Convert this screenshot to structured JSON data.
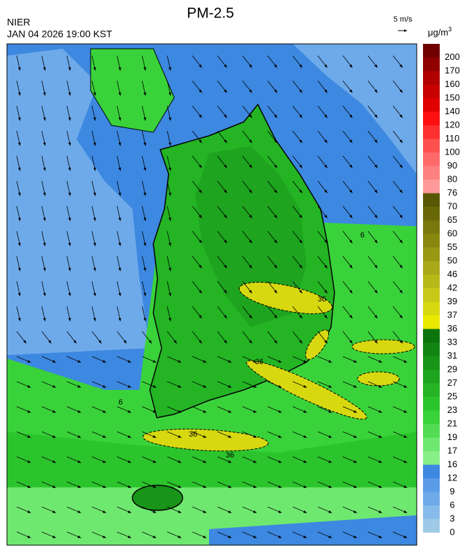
{
  "header": {
    "title": "PM-2.5",
    "agency": "NIER",
    "datetime": "JAN 04 2026 19:00 KST",
    "wind_scale": "5 m/s",
    "unit": "μg/m",
    "unit_sup": "3"
  },
  "colorbar": {
    "ticks": [
      0,
      3,
      6,
      9,
      12,
      16,
      17,
      19,
      21,
      23,
      25,
      27,
      29,
      31,
      33,
      36,
      37,
      39,
      42,
      46,
      50,
      55,
      60,
      65,
      70,
      76,
      80,
      90,
      100,
      110,
      120,
      140,
      150,
      160,
      170,
      200
    ],
    "colors": [
      "#9ecae8",
      "#86bbea",
      "#6eaaea",
      "#5a9ce8",
      "#3d88e0",
      "#88ee88",
      "#6fe86f",
      "#52dc52",
      "#3ad23a",
      "#2cc42c",
      "#24b424",
      "#1ea41e",
      "#189418",
      "#128412",
      "#0c740c",
      "#e8e800",
      "#d8d810",
      "#c8c818",
      "#b8b818",
      "#a8a818",
      "#989814",
      "#888810",
      "#78780c",
      "#686808",
      "#585804",
      "#ff9a9a",
      "#ff8080",
      "#ff6a6a",
      "#ff5050",
      "#ff3030",
      "#ff1010",
      "#e00000",
      "#c80000",
      "#b00000",
      "#900000",
      "#700000"
    ]
  },
  "map": {
    "contour_labels": [
      "36",
      "36",
      "36",
      "36",
      "6",
      "6"
    ]
  }
}
